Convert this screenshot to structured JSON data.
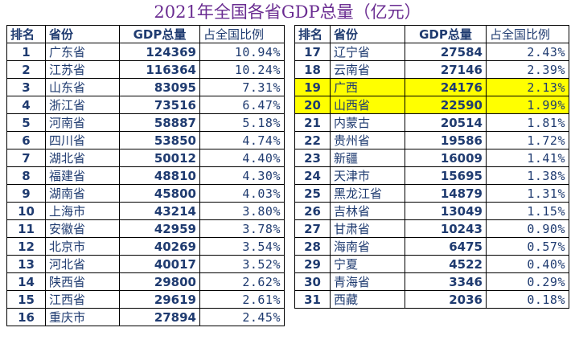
{
  "title": "2021年全国各省GDP总量（亿元）",
  "headers": {
    "rank": "排名",
    "province": "省份",
    "gdp": "GDP总量",
    "share": "占全国比例"
  },
  "highlight_color": "#ffff00",
  "left_rows": [
    {
      "rank": "1",
      "province": "广东省",
      "gdp": "124369",
      "share": "10.94%"
    },
    {
      "rank": "2",
      "province": "江苏省",
      "gdp": "116364",
      "share": "10.24%"
    },
    {
      "rank": "3",
      "province": "山东省",
      "gdp": "83095",
      "share": "7.31%"
    },
    {
      "rank": "4",
      "province": "浙江省",
      "gdp": "73516",
      "share": "6.47%"
    },
    {
      "rank": "5",
      "province": "河南省",
      "gdp": "58887",
      "share": "5.18%"
    },
    {
      "rank": "6",
      "province": "四川省",
      "gdp": "53850",
      "share": "4.74%"
    },
    {
      "rank": "7",
      "province": "湖北省",
      "gdp": "50012",
      "share": "4.40%"
    },
    {
      "rank": "8",
      "province": "福建省",
      "gdp": "48810",
      "share": "4.30%"
    },
    {
      "rank": "9",
      "province": "湖南省",
      "gdp": "45800",
      "share": "4.03%"
    },
    {
      "rank": "10",
      "province": "上海市",
      "gdp": "43214",
      "share": "3.80%"
    },
    {
      "rank": "11",
      "province": "安徽省",
      "gdp": "42959",
      "share": "3.78%"
    },
    {
      "rank": "12",
      "province": "北京市",
      "gdp": "40269",
      "share": "3.54%"
    },
    {
      "rank": "13",
      "province": "河北省",
      "gdp": "40017",
      "share": "3.52%"
    },
    {
      "rank": "14",
      "province": "陕西省",
      "gdp": "29800",
      "share": "2.62%"
    },
    {
      "rank": "15",
      "province": "江西省",
      "gdp": "29619",
      "share": "2.61%"
    },
    {
      "rank": "16",
      "province": "重庆市",
      "gdp": "27894",
      "share": "2.45%"
    }
  ],
  "right_rows": [
    {
      "rank": "17",
      "province": "辽宁省",
      "gdp": "27584",
      "share": "2.43%"
    },
    {
      "rank": "18",
      "province": "云南省",
      "gdp": "27146",
      "share": "2.39%"
    },
    {
      "rank": "19",
      "province": "广西",
      "gdp": "24176",
      "share": "2.13%",
      "highlight": true
    },
    {
      "rank": "20",
      "province": "山西省",
      "gdp": "22590",
      "share": "1.99%",
      "highlight": true
    },
    {
      "rank": "21",
      "province": "内蒙古",
      "gdp": "20514",
      "share": "1.81%"
    },
    {
      "rank": "22",
      "province": "贵州省",
      "gdp": "19586",
      "share": "1.72%"
    },
    {
      "rank": "23",
      "province": "新疆",
      "gdp": "16009",
      "share": "1.41%"
    },
    {
      "rank": "24",
      "province": "天津市",
      "gdp": "15695",
      "share": "1.38%"
    },
    {
      "rank": "25",
      "province": "黑龙江省",
      "gdp": "14879",
      "share": "1.31%"
    },
    {
      "rank": "26",
      "province": "吉林省",
      "gdp": "13049",
      "share": "1.15%"
    },
    {
      "rank": "27",
      "province": "甘肃省",
      "gdp": "10243",
      "share": "0.90%"
    },
    {
      "rank": "28",
      "province": "海南省",
      "gdp": "6475",
      "share": "0.57%"
    },
    {
      "rank": "29",
      "province": "宁夏",
      "gdp": "4522",
      "share": "0.40%"
    },
    {
      "rank": "30",
      "province": "青海省",
      "gdp": "3346",
      "share": "0.29%"
    },
    {
      "rank": "31",
      "province": "西藏",
      "gdp": "2036",
      "share": "0.18%"
    }
  ]
}
